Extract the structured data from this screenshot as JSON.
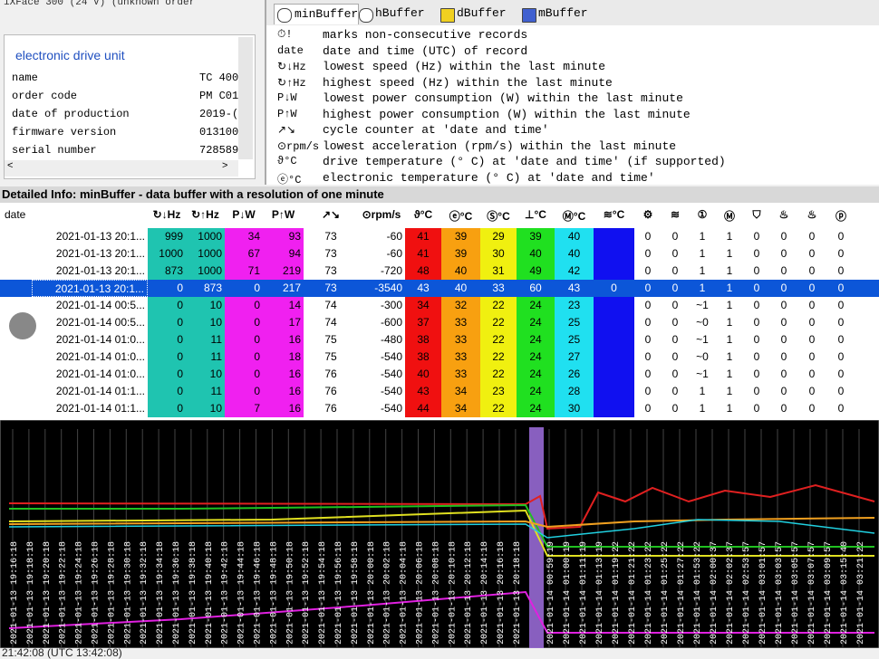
{
  "window_title": "iXFace 300 (24 V) (unknown order",
  "device_panel": {
    "title": "electronic drive unit",
    "rows": [
      [
        "name",
        "TC 400"
      ],
      [
        "order code",
        "PM C01"
      ],
      [
        "date of production",
        "2019-("
      ],
      [
        "firmware version",
        "013100"
      ],
      [
        "serial number",
        "728589"
      ]
    ]
  },
  "tabs": [
    "minBuffer",
    "hBuffer",
    "dBuffer",
    "mBuffer"
  ],
  "legend": [
    [
      "⏱!",
      "marks non-consecutive records"
    ],
    [
      "date",
      "date and time (UTC) of record"
    ],
    [
      "↻↓Hz",
      "lowest speed (Hz) within the last minute"
    ],
    [
      "↻↑Hz",
      "highest speed (Hz) within the last minute"
    ],
    [
      "P↓W",
      "lowest power consumption (W) within the last minute"
    ],
    [
      "P↑W",
      "highest power consumption (W) within the last minute"
    ],
    [
      "↗↘",
      "cycle counter at 'date and time'"
    ],
    [
      "⊙rpm/s",
      "lowest acceleration (rpm/s) within the last minute"
    ],
    [
      "ϑ°C",
      "drive temperature (° C) at 'date and time' (if supported)"
    ],
    [
      "ⓔ°C",
      "electronic temperature (° C) at 'date and time'"
    ]
  ],
  "detail_title": "Detailed Info: minBuffer - data buffer with a resolution of one minute",
  "table": {
    "columns": [
      {
        "label": "date"
      },
      {
        "label": "↻↓Hz",
        "color": "#1fc4b0"
      },
      {
        "label": "↻↑Hz",
        "color": "#1fc4b0"
      },
      {
        "label": "P↓W",
        "color": "#f020f0"
      },
      {
        "label": "P↑W",
        "color": "#f020f0"
      },
      {
        "label": "↗↘"
      },
      {
        "label": "⊙rpm/s"
      },
      {
        "label": "ϑ°C",
        "color": "#f01010"
      },
      {
        "label": "ⓔ°C",
        "color": "#f8a010"
      },
      {
        "label": "Ⓢ°C",
        "color": "#f0f010"
      },
      {
        "label": "⊥°C",
        "color": "#20e020"
      },
      {
        "label": "Ⓜ°C",
        "color": "#20e0f0"
      },
      {
        "label": "≋°C",
        "color": "#1010f0"
      },
      {
        "label": "⚙"
      },
      {
        "label": "≋"
      },
      {
        "label": "①"
      },
      {
        "label": "Ⓜ"
      },
      {
        "label": "⛉"
      },
      {
        "label": "♨"
      },
      {
        "label": "♨"
      },
      {
        "label": "ⓟ"
      }
    ],
    "selected_row": 3,
    "rows": [
      [
        "2021-01-13 20:1...",
        999,
        1000,
        34,
        93,
        73,
        -60,
        41,
        39,
        29,
        39,
        40,
        null,
        0,
        0,
        1,
        1,
        0,
        0,
        0,
        0
      ],
      [
        "2021-01-13 20:1...",
        1000,
        1000,
        67,
        94,
        73,
        -60,
        41,
        39,
        30,
        40,
        40,
        null,
        0,
        0,
        1,
        1,
        0,
        0,
        0,
        0
      ],
      [
        "2021-01-13 20:1...",
        873,
        1000,
        71,
        219,
        73,
        -720,
        48,
        40,
        31,
        49,
        42,
        null,
        0,
        0,
        1,
        1,
        0,
        0,
        0,
        0
      ],
      [
        "2021-01-13 20:1...",
        0,
        873,
        0,
        217,
        73,
        -3540,
        43,
        40,
        33,
        60,
        43,
        0,
        0,
        0,
        1,
        1,
        0,
        0,
        0,
        0
      ],
      [
        "2021-01-14 00:5...",
        0,
        10,
        0,
        14,
        74,
        -300,
        34,
        32,
        22,
        24,
        23,
        null,
        0,
        0,
        "~1",
        1,
        0,
        0,
        0,
        0
      ],
      [
        "2021-01-14 00:5...",
        0,
        10,
        0,
        17,
        74,
        -600,
        37,
        33,
        22,
        24,
        25,
        null,
        0,
        0,
        "~0",
        1,
        0,
        0,
        0,
        0
      ],
      [
        "2021-01-14 01:0...",
        0,
        11,
        0,
        16,
        75,
        -480,
        38,
        33,
        22,
        24,
        25,
        null,
        0,
        0,
        "~1",
        1,
        0,
        0,
        0,
        0
      ],
      [
        "2021-01-14 01:0...",
        0,
        11,
        0,
        18,
        75,
        -540,
        38,
        33,
        22,
        24,
        27,
        null,
        0,
        0,
        "~0",
        1,
        0,
        0,
        0,
        0
      ],
      [
        "2021-01-14 01:0...",
        0,
        10,
        0,
        16,
        76,
        -540,
        40,
        33,
        22,
        24,
        26,
        null,
        0,
        0,
        "~1",
        1,
        0,
        0,
        0,
        0
      ],
      [
        "2021-01-14 01:1...",
        0,
        11,
        0,
        16,
        76,
        -540,
        43,
        34,
        23,
        24,
        28,
        null,
        0,
        0,
        1,
        1,
        0,
        0,
        0,
        0
      ],
      [
        "2021-01-14 01:1...",
        0,
        10,
        7,
        16,
        76,
        -540,
        44,
        34,
        22,
        24,
        30,
        null,
        0,
        0,
        1,
        1,
        0,
        0,
        0,
        0
      ]
    ]
  },
  "chart_labels_a": [
    "2021-01-13 19:16:18",
    "2021-01-13 19:18:18",
    "2021-01-13 19:20:18",
    "2021-01-13 19:22:18",
    "2021-01-13 19:24:18",
    "2021-01-13 19:26:18",
    "2021-01-13 19:28:18",
    "2021-01-13 19:30:18",
    "2021-01-13 19:32:18",
    "2021-01-13 19:34:18",
    "2021-01-13 19:36:18",
    "2021-01-13 19:38:18",
    "2021-01-13 19:40:18",
    "2021-01-13 19:42:18",
    "2021-01-13 19:44:18",
    "2021-01-13 19:46:18",
    "2021-01-13 19:48:18",
    "2021-01-13 19:50:18",
    "2021-01-13 19:52:18",
    "2021-01-13 19:54:18",
    "2021-01-13 19:56:18",
    "2021-01-13 19:58:18",
    "2021-01-13 20:00:18",
    "2021-01-13 20:02:18",
    "2021-01-13 20:04:18",
    "2021-01-13 20:06:18",
    "2021-01-13 20:08:18",
    "2021-01-13 20:10:18",
    "2021-01-13 20:12:18",
    "2021-01-13 20:14:18",
    "2021-01-13 20:16:18",
    "2021-01-13 20:18:18"
  ],
  "chart_labels_b": [
    "2021-01-14 00:59:19",
    "2021-01-14 01:00:19",
    "2021-01-14 01:11:19",
    "2021-01-14 01:13:19",
    "2021-01-14 01:19:22",
    "2021-01-14 01:21:22",
    "2021-01-14 01:23:22",
    "2021-01-14 01:25:22",
    "2021-01-14 01:27:22",
    "2021-01-14 01:53:22",
    "2021-01-14 02:00:37",
    "2021-01-14 02:02:37",
    "2021-01-14 02:53:57",
    "2021-01-14 03:01:57",
    "2021-01-14 03:03:57",
    "2021-01-14 03:05:57",
    "2021-01-14 03:07:57",
    "2021-01-14 03:09:57",
    "2021-01-14 03:15:40",
    "2021-01-14 03:21:22"
  ],
  "status": "21:42:08 (UTC 13:42:08)"
}
